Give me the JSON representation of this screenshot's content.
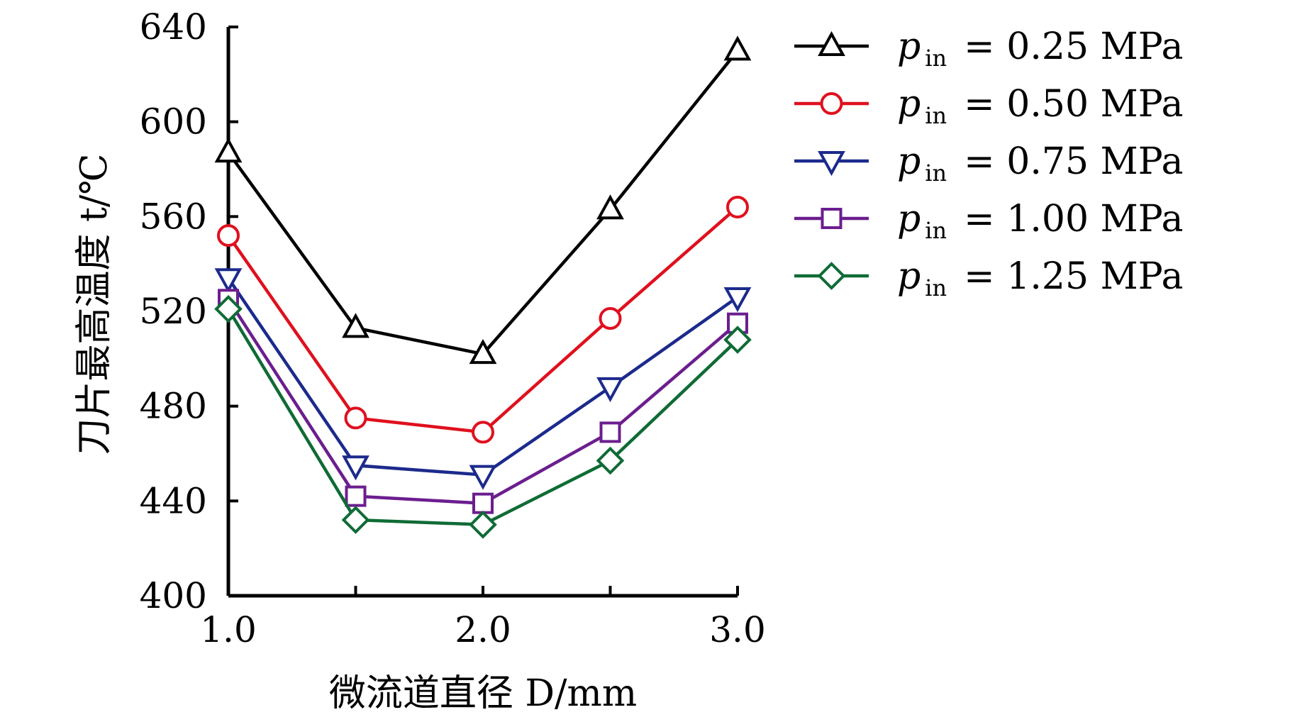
{
  "chart_data": {
    "type": "line",
    "xlabel": "微流道直径 D/mm",
    "ylabel": "刀片最高温度 t/℃",
    "x": [
      1.0,
      1.5,
      2.0,
      2.5,
      3.0
    ],
    "xlim": [
      1.0,
      3.0
    ],
    "ylim": [
      400,
      640
    ],
    "x_ticks": [
      "1.0",
      "2.0",
      "3.0"
    ],
    "y_ticks": [
      "400",
      "440",
      "480",
      "520",
      "560",
      "600",
      "640"
    ],
    "grid": false,
    "legend_position": "top-right",
    "series": [
      {
        "name": "p in = 0.25 MPa",
        "label_main": "p",
        "label_sub": "in",
        "label_value": "= 0.25 MPa",
        "marker": "triangle-up",
        "color": "#000000",
        "values": [
          587,
          513,
          502,
          563,
          630
        ]
      },
      {
        "name": "p in = 0.50 MPa",
        "label_main": "p",
        "label_sub": "in",
        "label_value": "= 0.50 MPa",
        "marker": "circle",
        "color": "#e0101e",
        "values": [
          552,
          475,
          469,
          517,
          564
        ]
      },
      {
        "name": "p in = 0.75 MPa",
        "label_main": "p",
        "label_sub": "in",
        "label_value": "= 0.75 MPa",
        "marker": "triangle-down",
        "color": "#1c2a8c",
        "values": [
          534,
          455,
          451,
          488,
          526
        ]
      },
      {
        "name": "p in = 1.00 MPa",
        "label_main": "p",
        "label_sub": "in",
        "label_value": "= 1.00 MPa",
        "marker": "square",
        "color": "#6b1e8e",
        "values": [
          525,
          442,
          439,
          469,
          515
        ]
      },
      {
        "name": "p in = 1.25 MPa",
        "label_main": "p",
        "label_sub": "in",
        "label_value": "= 1.25 MPa",
        "marker": "diamond",
        "color": "#0f6b35",
        "values": [
          521,
          432,
          430,
          457,
          508
        ]
      }
    ]
  }
}
